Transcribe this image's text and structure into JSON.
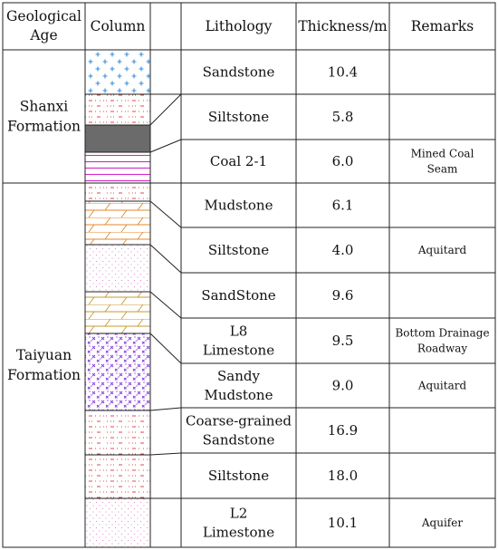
{
  "headers": {
    "age_line1": "Geological",
    "age_line2": "Age",
    "column": "Column",
    "lithology": "Lithology",
    "thickness": "Thickness/m",
    "remarks": "Remarks"
  },
  "ages": [
    {
      "line1": "Shanxi",
      "line2": "Formation"
    },
    {
      "line1": "Taiyuan",
      "line2": "Formation"
    }
  ],
  "rows": [
    {
      "lithology": [
        "Sandstone"
      ],
      "thickness": "10.4",
      "remarks": []
    },
    {
      "lithology": [
        "Siltstone"
      ],
      "thickness": "5.8",
      "remarks": []
    },
    {
      "lithology": [
        "Coal 2-1"
      ],
      "thickness": "6.0",
      "remarks": [
        "Mined Coal",
        "Seam"
      ]
    },
    {
      "lithology": [
        "Mudstone"
      ],
      "thickness": "6.1",
      "remarks": []
    },
    {
      "lithology": [
        "Siltstone"
      ],
      "thickness": "4.0",
      "remarks": [
        "Aquitard"
      ]
    },
    {
      "lithology": [
        "SandStone"
      ],
      "thickness": "9.6",
      "remarks": []
    },
    {
      "lithology": [
        "L8",
        "Limestone"
      ],
      "thickness": "9.5",
      "remarks": [
        "Bottom Drainage",
        "Roadway"
      ]
    },
    {
      "lithology": [
        "Sandy",
        "Mudstone"
      ],
      "thickness": "9.0",
      "remarks": [
        "Aquitard"
      ]
    },
    {
      "lithology": [
        "Coarse-grained",
        "Sandstone"
      ],
      "thickness": "16.9",
      "remarks": []
    },
    {
      "lithology": [
        "Siltstone"
      ],
      "thickness": "18.0",
      "remarks": []
    },
    {
      "lithology": [
        "L2",
        "Limestone"
      ],
      "thickness": "10.1",
      "remarks": [
        "Aquifer"
      ]
    }
  ],
  "column_layers": [
    {
      "lithology": "Sandstone",
      "pattern": "cross",
      "color": "#3a8fd8"
    },
    {
      "lithology": "Siltstone",
      "pattern": "dash-dot",
      "color": "#e0484e"
    },
    {
      "lithology": "Coal",
      "pattern": "solid",
      "color": "#6b6b6b"
    },
    {
      "lithology": "Mudstone",
      "pattern": "lines",
      "color": "#d426c8"
    },
    {
      "lithology": "Siltstone",
      "pattern": "dash-dot",
      "color": "#e0484e"
    },
    {
      "lithology": "Limestone",
      "pattern": "brick",
      "color": "#e08a2a"
    },
    {
      "lithology": "Siltstone",
      "pattern": "dots",
      "color": "#d070c0"
    },
    {
      "lithology": "Limestone",
      "pattern": "brick",
      "color": "#c99a2c"
    },
    {
      "lithology": "Sandy Mudstone",
      "pattern": "grid-x",
      "color": "#8a3ee0"
    },
    {
      "lithology": "Coarse-grained Sandstone",
      "pattern": "dash-dot",
      "color": "#e0484e"
    },
    {
      "lithology": "Siltstone",
      "pattern": "dash-dot",
      "color": "#e0484e"
    },
    {
      "lithology": "Limestone",
      "pattern": "dots",
      "color": "#d070c0"
    }
  ]
}
